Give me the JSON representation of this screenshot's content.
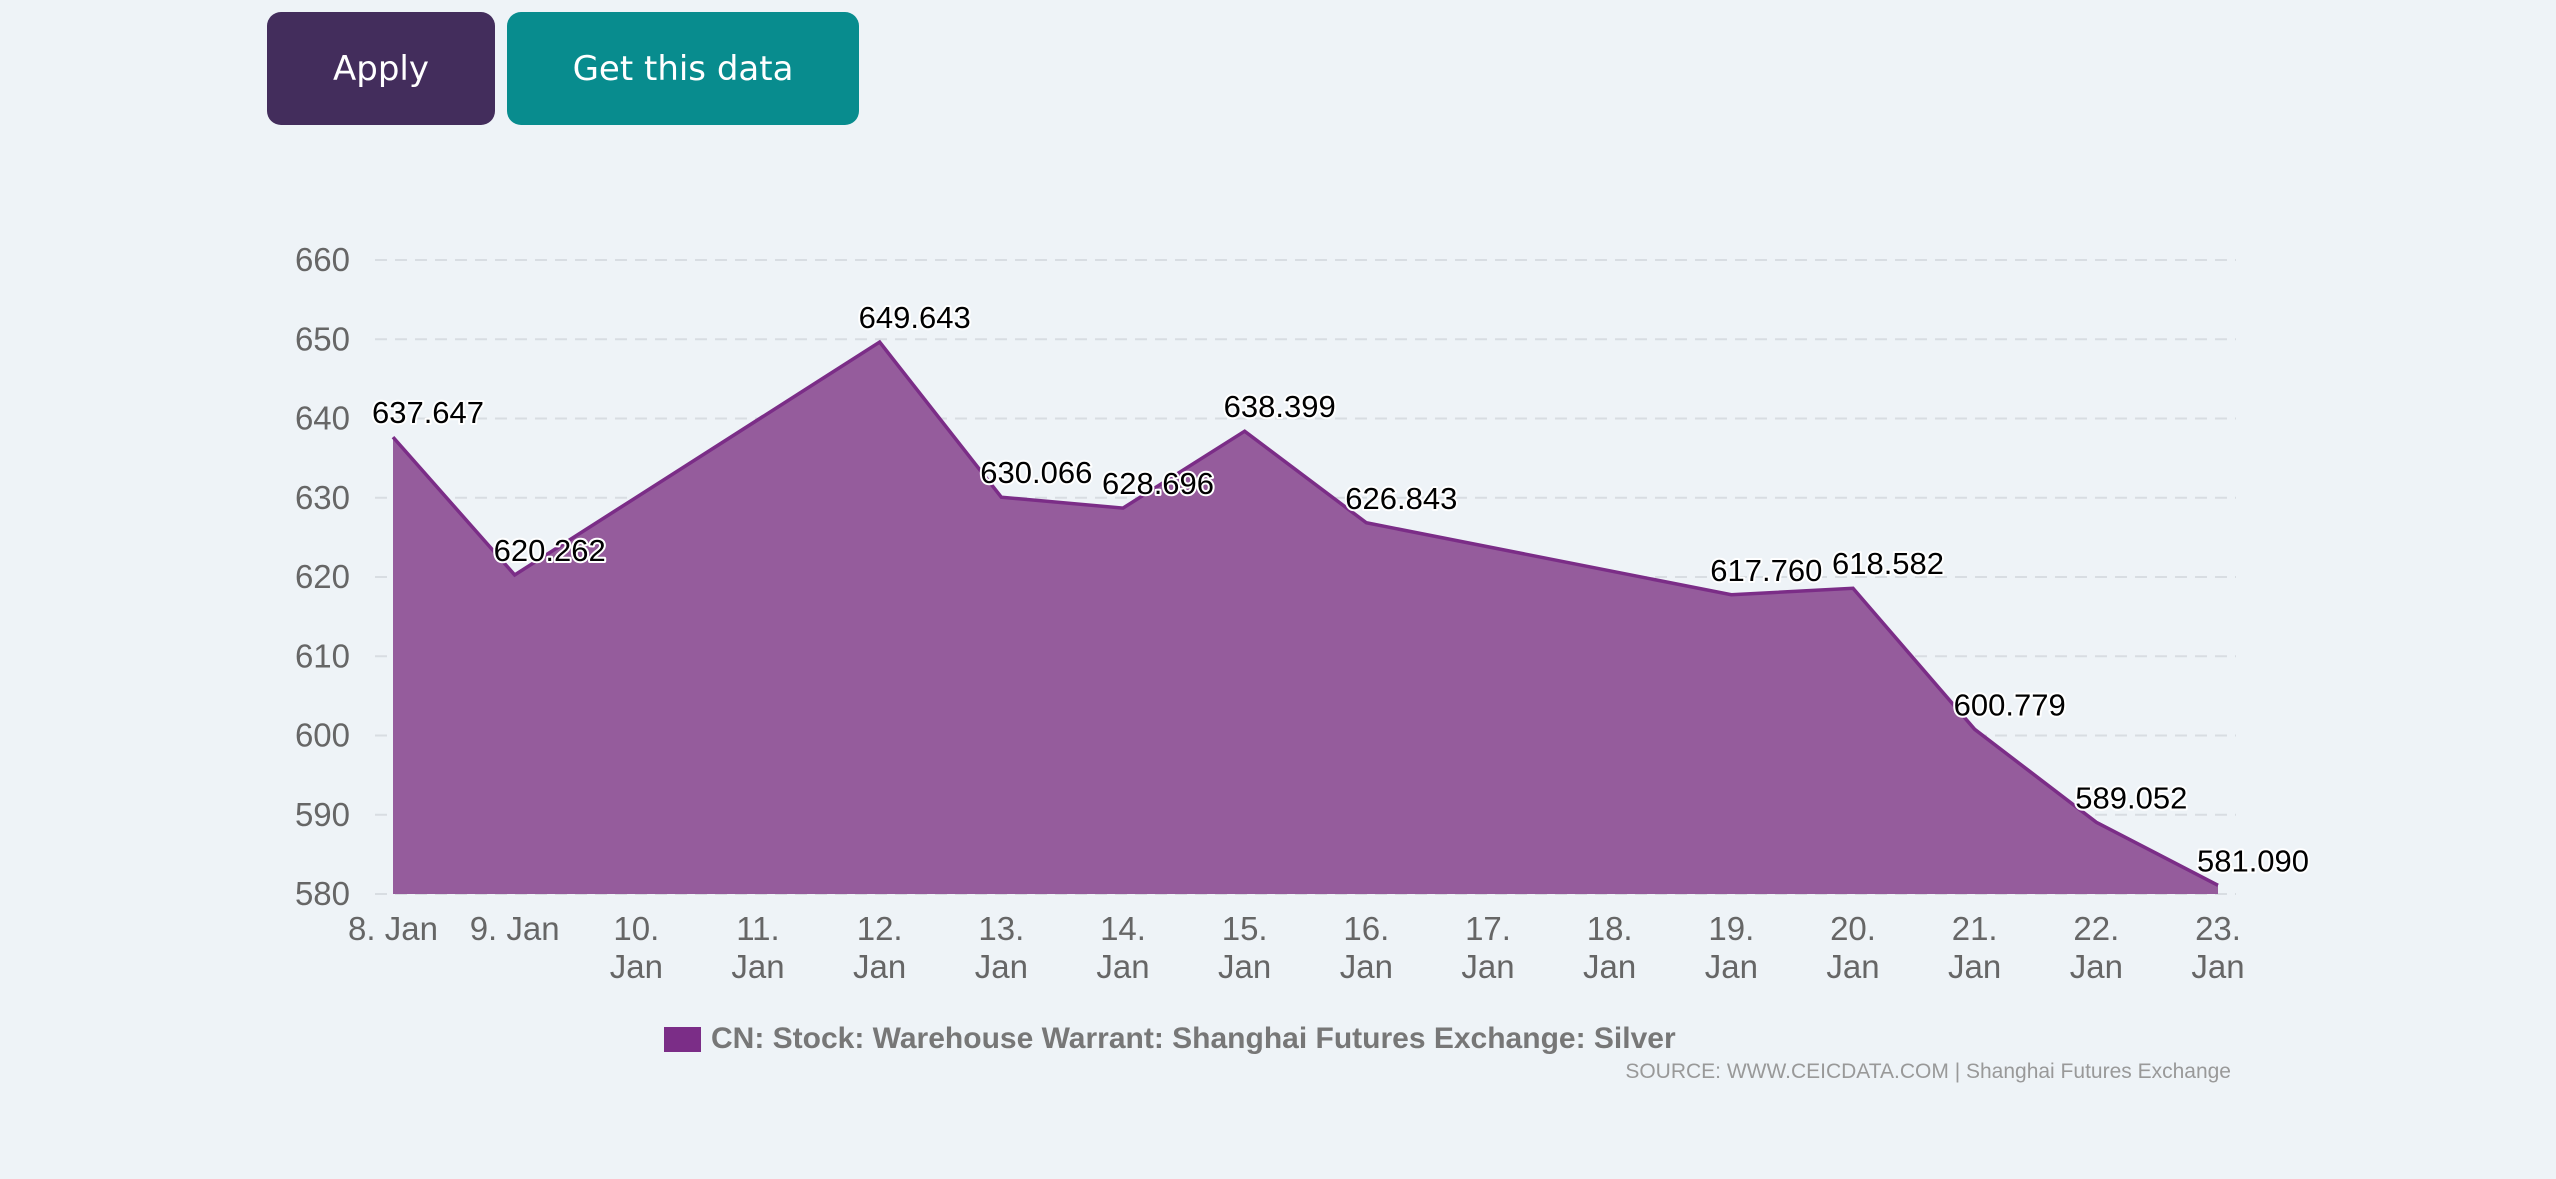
{
  "toolbar": {
    "apply_label": "Apply",
    "get_data_label": "Get this data",
    "apply_color": "#432d5c",
    "get_data_color": "#088c8e"
  },
  "chart_data": {
    "type": "area",
    "title": "",
    "xlabel": "",
    "ylabel": "",
    "ylim": [
      580,
      660
    ],
    "yticks": [
      580,
      590,
      600,
      610,
      620,
      630,
      640,
      650,
      660
    ],
    "grid": true,
    "legend_position": "bottom-center",
    "x_tick_labels": [
      "8. Jan",
      "9. Jan",
      "10. Jan",
      "11. Jan",
      "12. Jan",
      "13. Jan",
      "14. Jan",
      "15. Jan",
      "16. Jan",
      "17. Jan",
      "18. Jan",
      "19. Jan",
      "20. Jan",
      "21. Jan",
      "22. Jan",
      "23. Jan"
    ],
    "x_day_start": 8,
    "x_day_end": 23,
    "series": [
      {
        "name": "CN: Stock: Warehouse Warrant: Shanghai Futures Exchange: Silver",
        "color": "#7b2d87",
        "fill_color": "#955c9c",
        "points": [
          {
            "day": 8,
            "label": "8. Jan",
            "value": 637.647
          },
          {
            "day": 9,
            "label": "9. Jan",
            "value": 620.262
          },
          {
            "day": 12,
            "label": "12. Jan",
            "value": 649.643
          },
          {
            "day": 13,
            "label": "13. Jan",
            "value": 630.066
          },
          {
            "day": 14,
            "label": "14. Jan",
            "value": 628.696
          },
          {
            "day": 15,
            "label": "15. Jan",
            "value": 638.399
          },
          {
            "day": 16,
            "label": "16. Jan",
            "value": 626.843
          },
          {
            "day": 19,
            "label": "19. Jan",
            "value": 617.76
          },
          {
            "day": 20,
            "label": "20. Jan",
            "value": 618.582
          },
          {
            "day": 21,
            "label": "21. Jan",
            "value": 600.779
          },
          {
            "day": 22,
            "label": "22. Jan",
            "value": 589.052
          },
          {
            "day": 23,
            "label": "23. Jan",
            "value": 581.09
          }
        ]
      }
    ],
    "source": "SOURCE: WWW.CEICDATA.COM | Shanghai Futures Exchange"
  }
}
